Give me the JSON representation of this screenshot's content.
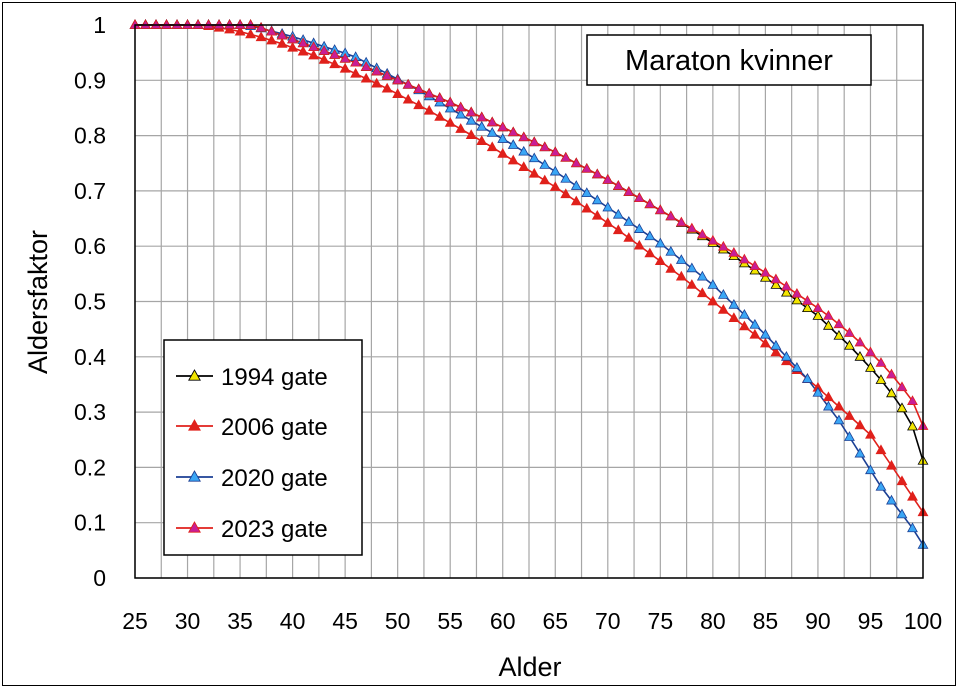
{
  "chart_data": {
    "type": "line",
    "title": "Maraton kvinner",
    "xlabel": "Alder",
    "ylabel": "Aldersfaktor",
    "xlim": [
      25,
      100
    ],
    "ylim": [
      0,
      1
    ],
    "x_ticks": [
      "25",
      "30",
      "35",
      "40",
      "45",
      "50",
      "55",
      "60",
      "65",
      "70",
      "75",
      "80",
      "85",
      "90",
      "95",
      "100"
    ],
    "y_ticks": [
      "0",
      "0.1",
      "0.2",
      "0.3",
      "0.4",
      "0.5",
      "0.6",
      "0.7",
      "0.8",
      "0.9",
      "1"
    ],
    "grid": true,
    "legend_position": "bottom-left",
    "x": [
      25,
      26,
      27,
      28,
      29,
      30,
      31,
      32,
      33,
      34,
      35,
      36,
      37,
      38,
      39,
      40,
      41,
      42,
      43,
      44,
      45,
      46,
      47,
      48,
      49,
      50,
      51,
      52,
      53,
      54,
      55,
      56,
      57,
      58,
      59,
      60,
      61,
      62,
      63,
      64,
      65,
      66,
      67,
      68,
      69,
      70,
      71,
      72,
      73,
      74,
      75,
      76,
      77,
      78,
      79,
      80,
      81,
      82,
      83,
      84,
      85,
      86,
      87,
      88,
      89,
      90,
      91,
      92,
      93,
      94,
      95,
      96,
      97,
      98,
      99,
      100
    ],
    "series": [
      {
        "name": "1994 gate",
        "line_color": "#000000",
        "marker_color": "#f2e600",
        "values": [
          1.0,
          1.0,
          1.0,
          1.0,
          1.0,
          1.0,
          1.0,
          1.0,
          1.0,
          1.0,
          1.0,
          1.0,
          0.995,
          0.988,
          0.981,
          0.974,
          0.967,
          0.96,
          0.953,
          0.946,
          0.939,
          0.932,
          0.924,
          0.916,
          0.908,
          0.9,
          0.892,
          0.884,
          0.876,
          0.868,
          0.86,
          0.851,
          0.842,
          0.833,
          0.824,
          0.815,
          0.806,
          0.797,
          0.788,
          0.779,
          0.77,
          0.76,
          0.75,
          0.74,
          0.73,
          0.72,
          0.709,
          0.698,
          0.687,
          0.676,
          0.665,
          0.654,
          0.642,
          0.63,
          0.618,
          0.606,
          0.594,
          0.582,
          0.569,
          0.556,
          0.543,
          0.53,
          0.516,
          0.502,
          0.488,
          0.474,
          0.456,
          0.438,
          0.42,
          0.4,
          0.38,
          0.358,
          0.334,
          0.307,
          0.274,
          0.212
        ]
      },
      {
        "name": "2006 gate",
        "line_color": "#e0201b",
        "marker_color": "#e0201b",
        "values": [
          1.0,
          1.0,
          1.0,
          1.0,
          1.0,
          1.0,
          1.0,
          0.998,
          0.995,
          0.992,
          0.988,
          0.983,
          0.978,
          0.972,
          0.966,
          0.959,
          0.952,
          0.945,
          0.937,
          0.929,
          0.921,
          0.912,
          0.903,
          0.894,
          0.885,
          0.875,
          0.865,
          0.855,
          0.845,
          0.834,
          0.823,
          0.812,
          0.801,
          0.79,
          0.779,
          0.767,
          0.755,
          0.743,
          0.731,
          0.719,
          0.707,
          0.694,
          0.681,
          0.668,
          0.655,
          0.642,
          0.629,
          0.615,
          0.601,
          0.587,
          0.573,
          0.559,
          0.545,
          0.53,
          0.515,
          0.5,
          0.485,
          0.47,
          0.455,
          0.44,
          0.424,
          0.408,
          0.392,
          0.376,
          0.36,
          0.344,
          0.327,
          0.31,
          0.293,
          0.276,
          0.259,
          0.231,
          0.203,
          0.175,
          0.147,
          0.119
        ]
      },
      {
        "name": "2020 gate",
        "line_color": "#1b3f94",
        "marker_color": "#3aa6f5",
        "values": [
          1.0,
          1.0,
          1.0,
          1.0,
          1.0,
          1.0,
          1.0,
          1.0,
          1.0,
          1.0,
          1.0,
          0.998,
          0.994,
          0.989,
          0.984,
          0.979,
          0.973,
          0.967,
          0.961,
          0.955,
          0.949,
          0.942,
          0.932,
          0.922,
          0.912,
          0.902,
          0.892,
          0.882,
          0.871,
          0.86,
          0.849,
          0.838,
          0.827,
          0.816,
          0.805,
          0.794,
          0.783,
          0.771,
          0.759,
          0.747,
          0.735,
          0.722,
          0.709,
          0.696,
          0.683,
          0.67,
          0.657,
          0.644,
          0.631,
          0.618,
          0.605,
          0.59,
          0.575,
          0.56,
          0.545,
          0.53,
          0.512,
          0.494,
          0.476,
          0.458,
          0.44,
          0.42,
          0.4,
          0.38,
          0.36,
          0.335,
          0.31,
          0.285,
          0.255,
          0.225,
          0.195,
          0.165,
          0.14,
          0.115,
          0.09,
          0.06
        ]
      },
      {
        "name": "2023 gate",
        "line_color": "#e0201b",
        "marker_color": "#c81e96",
        "values": [
          1.0,
          1.0,
          1.0,
          1.0,
          1.0,
          1.0,
          1.0,
          1.0,
          1.0,
          1.0,
          1.0,
          1.0,
          0.995,
          0.988,
          0.981,
          0.974,
          0.967,
          0.96,
          0.953,
          0.946,
          0.939,
          0.932,
          0.924,
          0.916,
          0.908,
          0.9,
          0.892,
          0.884,
          0.876,
          0.868,
          0.86,
          0.851,
          0.842,
          0.833,
          0.824,
          0.815,
          0.806,
          0.797,
          0.788,
          0.779,
          0.77,
          0.76,
          0.75,
          0.74,
          0.73,
          0.72,
          0.709,
          0.698,
          0.687,
          0.676,
          0.665,
          0.654,
          0.643,
          0.632,
          0.621,
          0.61,
          0.599,
          0.588,
          0.576,
          0.564,
          0.552,
          0.54,
          0.527,
          0.514,
          0.501,
          0.488,
          0.474,
          0.459,
          0.443,
          0.426,
          0.408,
          0.389,
          0.368,
          0.345,
          0.32,
          0.275
        ]
      }
    ]
  }
}
